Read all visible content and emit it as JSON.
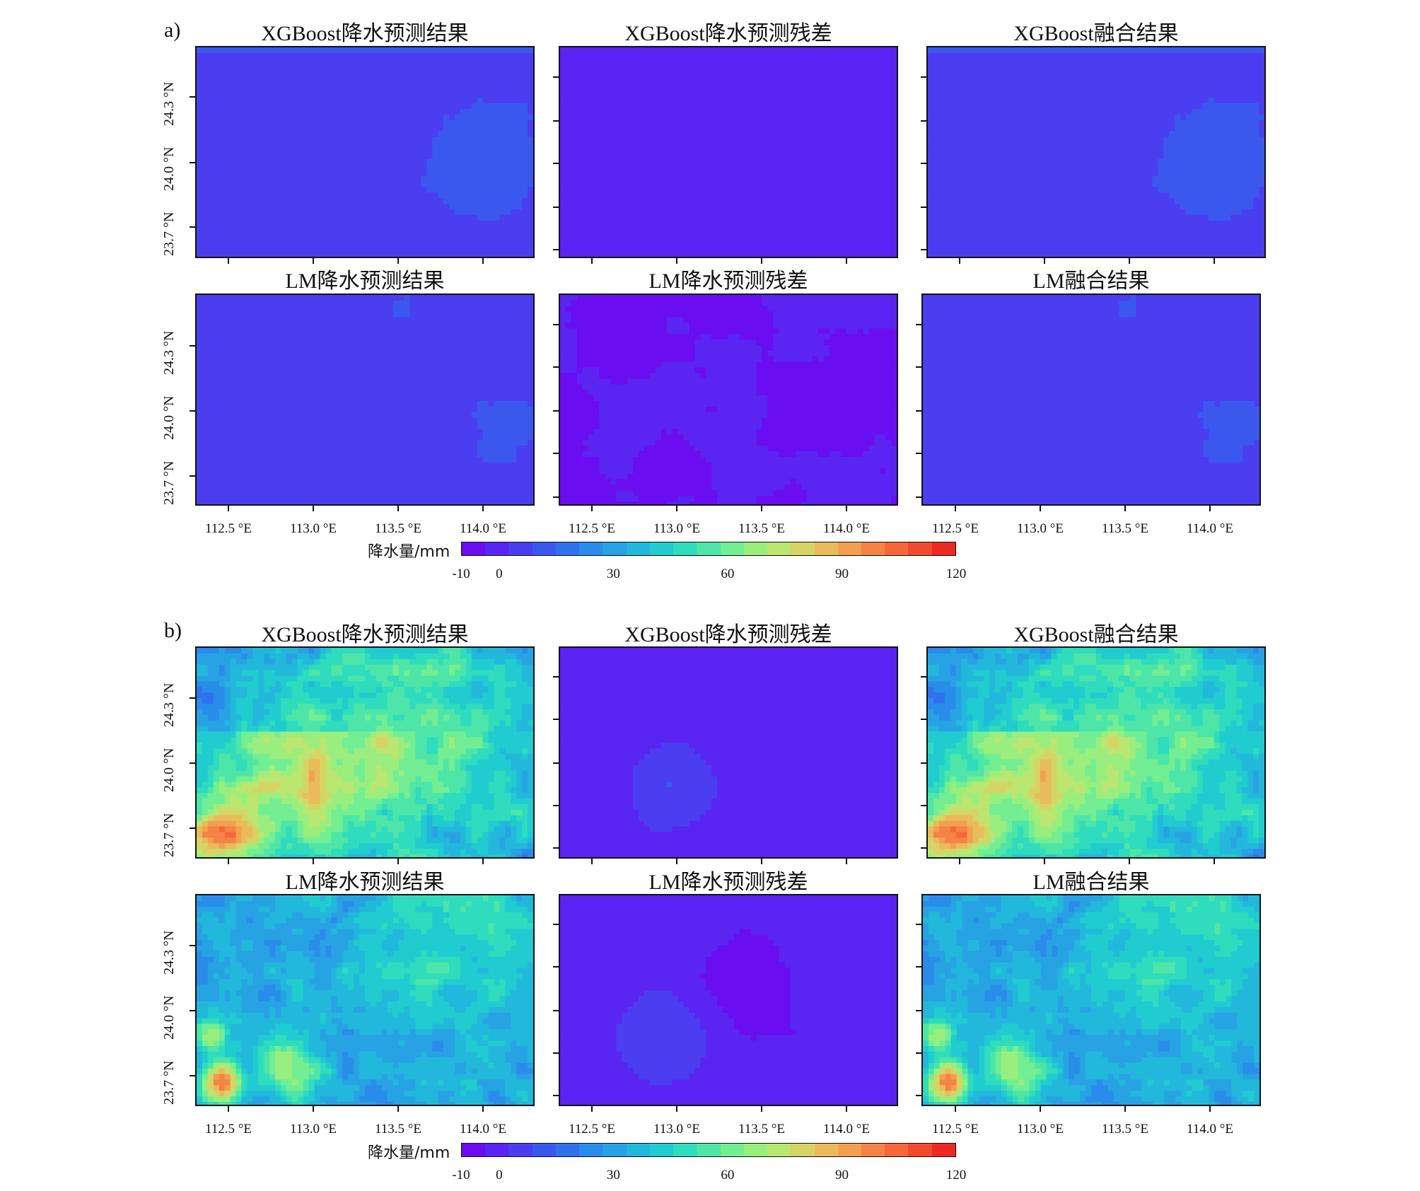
{
  "figure": {
    "sections": [
      {
        "label": "a)",
        "rows": [
          {
            "panels": [
              {
                "title": "XGBoost降水预测结果",
                "field": "fieldA_XGB_pred"
              },
              {
                "title": "XGBoost降水预测残差",
                "field": "fieldA_XGB_resid"
              },
              {
                "title": "XGBoost融合结果",
                "field": "fieldA_XGB_fused"
              }
            ]
          },
          {
            "panels": [
              {
                "title": "LM降水预测结果",
                "field": "fieldA_LM_pred"
              },
              {
                "title": "LM降水预测残差",
                "field": "fieldA_LM_resid"
              },
              {
                "title": "LM融合结果",
                "field": "fieldA_LM_fused"
              }
            ]
          }
        ]
      },
      {
        "label": "b)",
        "rows": [
          {
            "panels": [
              {
                "title": "XGBoost降水预测结果",
                "field": "fieldB_XGB_pred"
              },
              {
                "title": "XGBoost降水预测残差",
                "field": "fieldB_XGB_resid"
              },
              {
                "title": "XGBoost融合结果",
                "field": "fieldB_XGB_fused"
              }
            ]
          },
          {
            "panels": [
              {
                "title": "LM降水预测结果",
                "field": "fieldB_LM_pred"
              },
              {
                "title": "LM降水预测残差",
                "field": "fieldB_LM_resid"
              },
              {
                "title": "LM融合结果",
                "field": "fieldB_LM_fused"
              }
            ]
          }
        ]
      }
    ],
    "lat_ticks": [
      "24.3 °N",
      "24.0 °N",
      "23.7 °N"
    ],
    "lon_ticks": [
      "112.5 °E",
      "113.0 °E",
      "113.5 °E",
      "114.0 °E"
    ],
    "colorbar": {
      "label": "降水量/mm",
      "ticks": [
        "-10",
        "0",
        "30",
        "60",
        "90",
        "120"
      ],
      "tick_values": [
        -10,
        0,
        30,
        60,
        90,
        120
      ],
      "range": [
        -10,
        120
      ],
      "colors": [
        "#6a0df0",
        "#5a24f2",
        "#4a3ef0",
        "#3b58ee",
        "#2f72ec",
        "#2a8cea",
        "#27a3e4",
        "#22b8dc",
        "#20cccf",
        "#2fdcbd",
        "#4de6a8",
        "#73ee92",
        "#9aee7e",
        "#bbe670",
        "#d6d465",
        "#e9bb5b",
        "#f2a050",
        "#f58345",
        "#f6673a",
        "#f24a2f",
        "#ec2a22"
      ]
    }
  }
}
